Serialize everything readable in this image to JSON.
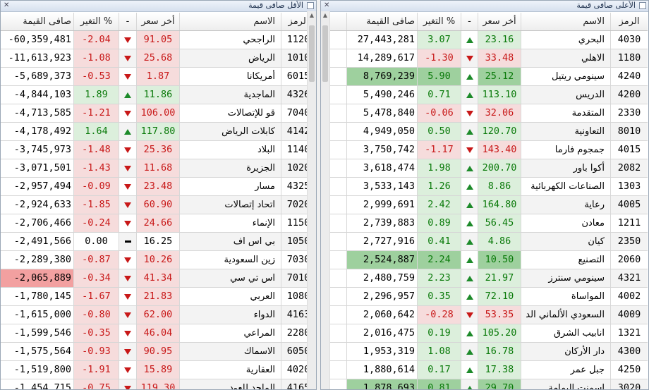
{
  "left_panel": {
    "title": "الأقل صافى قيمة",
    "headers": {
      "code": "الرمز",
      "name": "الاسم",
      "price": "أخر سعر",
      "arrow": "-",
      "change": "التغير %",
      "net": "صافى القيمة"
    },
    "rows": [
      {
        "code": "1120",
        "name": "الراجحي",
        "price": "91.05",
        "dir": "down",
        "change": "-2.04",
        "net": "-60,359,481"
      },
      {
        "code": "1010",
        "name": "الرياض",
        "price": "25.68",
        "dir": "down",
        "change": "-1.08",
        "net": "-11,613,923"
      },
      {
        "code": "6015",
        "name": "أمريكانا",
        "price": "1.87",
        "dir": "down",
        "change": "-0.53",
        "net": "-5,689,373"
      },
      {
        "code": "4326",
        "name": "الماجدية",
        "price": "11.86",
        "dir": "up",
        "change": "1.89",
        "net": "-4,844,103"
      },
      {
        "code": "7040",
        "name": "قو للإتصالات",
        "price": "106.00",
        "dir": "down",
        "change": "-1.21",
        "net": "-4,713,585"
      },
      {
        "code": "4142",
        "name": "كابلات الرياض",
        "price": "117.80",
        "dir": "up",
        "change": "1.64",
        "net": "-4,178,492"
      },
      {
        "code": "1140",
        "name": "البلاد",
        "price": "25.36",
        "dir": "down",
        "change": "-1.48",
        "net": "-3,745,973"
      },
      {
        "code": "1020",
        "name": "الجزيرة",
        "price": "11.68",
        "dir": "down",
        "change": "-1.43",
        "net": "-3,071,501"
      },
      {
        "code": "4325",
        "name": "مسار",
        "price": "23.48",
        "dir": "down",
        "change": "-0.09",
        "net": "-2,957,494"
      },
      {
        "code": "7020",
        "name": "اتحاد إتصالات",
        "price": "60.90",
        "dir": "down",
        "change": "-1.85",
        "net": "-2,924,633"
      },
      {
        "code": "1150",
        "name": "الإنماء",
        "price": "24.66",
        "dir": "down",
        "change": "-0.24",
        "net": "-2,706,466"
      },
      {
        "code": "1050",
        "name": "بي اس اف",
        "price": "16.25",
        "dir": "flat",
        "change": "0.00",
        "net": "-2,491,566"
      },
      {
        "code": "7030",
        "name": "زين السعودية",
        "price": "10.26",
        "dir": "down",
        "change": "-0.87",
        "net": "-2,289,380"
      },
      {
        "code": "7010",
        "name": "اس تي سي",
        "price": "41.34",
        "dir": "down",
        "change": "-0.34",
        "net": "-2,065,889",
        "highlight": true
      },
      {
        "code": "1080",
        "name": "العربي",
        "price": "21.83",
        "dir": "down",
        "change": "-1.67",
        "net": "-1,780,145"
      },
      {
        "code": "4163",
        "name": "الدواء",
        "price": "62.00",
        "dir": "down",
        "change": "-0.80",
        "net": "-1,615,000"
      },
      {
        "code": "2280",
        "name": "المراعي",
        "price": "46.04",
        "dir": "down",
        "change": "-0.35",
        "net": "-1,599,546"
      },
      {
        "code": "6050",
        "name": "الاسماك",
        "price": "90.95",
        "dir": "down",
        "change": "-0.93",
        "net": "-1,575,564"
      },
      {
        "code": "4020",
        "name": "العقارية",
        "price": "15.89",
        "dir": "down",
        "change": "-1.91",
        "net": "-1,519,800"
      },
      {
        "code": "4165",
        "name": "الماجد للعود",
        "price": "119.30",
        "dir": "down",
        "change": "-0.75",
        "net": "-1,454,715"
      }
    ]
  },
  "right_panel": {
    "title": "الأعلى صافى قيمة",
    "headers": {
      "code": "الرمز",
      "name": "الاسم",
      "price": "أخر سعر",
      "arrow": "-",
      "change": "التغير %",
      "net": "صافى القيمة"
    },
    "rows": [
      {
        "code": "4030",
        "name": "البحري",
        "price": "23.16",
        "dir": "up",
        "change": "3.07",
        "net": "27,443,281"
      },
      {
        "code": "1180",
        "name": "الاهلي",
        "price": "33.48",
        "dir": "down",
        "change": "-1.30",
        "net": "14,289,617"
      },
      {
        "code": "4240",
        "name": "سينومي ريتيل",
        "price": "25.12",
        "dir": "up",
        "change": "5.90",
        "net": "8,769,239",
        "highlight": true
      },
      {
        "code": "4200",
        "name": "الدريس",
        "price": "113.10",
        "dir": "up",
        "change": "0.71",
        "net": "5,490,246"
      },
      {
        "code": "2330",
        "name": "المتقدمة",
        "price": "32.06",
        "dir": "down",
        "change": "-0.06",
        "net": "5,478,840"
      },
      {
        "code": "8010",
        "name": "التعاونية",
        "price": "120.70",
        "dir": "up",
        "change": "0.50",
        "net": "4,949,050"
      },
      {
        "code": "4015",
        "name": "جمجوم فارما",
        "price": "143.40",
        "dir": "down",
        "change": "-1.17",
        "net": "3,750,742"
      },
      {
        "code": "2082",
        "name": "أكوا باور",
        "price": "200.70",
        "dir": "up",
        "change": "1.98",
        "net": "3,618,474"
      },
      {
        "code": "1303",
        "name": "الصناعات الكهربائية",
        "price": "8.86",
        "dir": "up",
        "change": "1.26",
        "net": "3,533,143"
      },
      {
        "code": "4005",
        "name": "رعاية",
        "price": "164.80",
        "dir": "up",
        "change": "2.42",
        "net": "2,999,691"
      },
      {
        "code": "1211",
        "name": "معادن",
        "price": "56.45",
        "dir": "up",
        "change": "0.89",
        "net": "2,739,883"
      },
      {
        "code": "2350",
        "name": "كيان",
        "price": "4.86",
        "dir": "up",
        "change": "0.41",
        "net": "2,727,916"
      },
      {
        "code": "2060",
        "name": "التصنيع",
        "price": "10.50",
        "dir": "up",
        "change": "2.24",
        "net": "2,524,887",
        "highlight": true
      },
      {
        "code": "4321",
        "name": "سينومي سنترز",
        "price": "21.97",
        "dir": "up",
        "change": "2.23",
        "net": "2,480,759"
      },
      {
        "code": "4002",
        "name": "المواساة",
        "price": "72.10",
        "dir": "up",
        "change": "0.35",
        "net": "2,296,957"
      },
      {
        "code": "4009",
        "name": "السعودي الألماني الد",
        "price": "53.35",
        "dir": "down",
        "change": "-0.28",
        "net": "2,060,642"
      },
      {
        "code": "1321",
        "name": "انابيب الشرق",
        "price": "105.20",
        "dir": "up",
        "change": "0.19",
        "net": "2,016,475"
      },
      {
        "code": "4300",
        "name": "دار الأركان",
        "price": "16.78",
        "dir": "up",
        "change": "1.08",
        "net": "1,953,319"
      },
      {
        "code": "4250",
        "name": "جبل عمر",
        "price": "17.38",
        "dir": "up",
        "change": "0.17",
        "net": "1,880,614"
      },
      {
        "code": "3020",
        "name": "اسمنت اليمامة",
        "price": "29.70",
        "dir": "up",
        "change": "0.81",
        "net": "1,878,693",
        "highlight": true
      }
    ]
  },
  "colors": {
    "positive": "#0a7a0a",
    "negative": "#c81818",
    "highlight_negative": "#f2a0a0",
    "highlight_positive": "#9ed09e"
  },
  "icons": {
    "up": "arrow-up-icon",
    "down": "arrow-down-icon",
    "flat": "dash-icon"
  }
}
